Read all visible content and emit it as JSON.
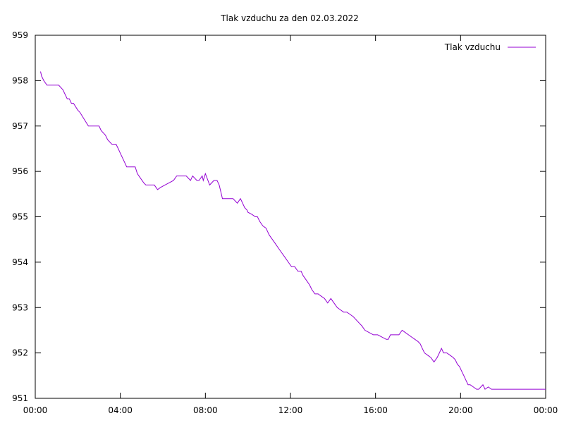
{
  "chart_data": {
    "type": "line",
    "title": "Tlak vzduchu za den 02.03.2022",
    "xlabel": "",
    "ylabel": "",
    "x_ticks": [
      "00:00",
      "04:00",
      "08:00",
      "12:00",
      "16:00",
      "20:00",
      "00:00"
    ],
    "y_ticks": [
      951,
      952,
      953,
      954,
      955,
      956,
      957,
      958,
      959
    ],
    "xlim": [
      0,
      24
    ],
    "ylim": [
      951,
      959
    ],
    "grid": false,
    "legend_position": "top-right",
    "series": [
      {
        "name": "Tlak vzduchu",
        "color": "#9400d3",
        "x": [
          0.25,
          0.3,
          0.4,
          0.55,
          0.7,
          0.9,
          1.1,
          1.3,
          1.5,
          1.6,
          1.7,
          1.8,
          2.0,
          2.1,
          2.3,
          2.5,
          2.6,
          2.7,
          2.9,
          3.0,
          3.1,
          3.3,
          3.4,
          3.6,
          3.7,
          3.8,
          3.9,
          4.0,
          4.1,
          4.2,
          4.3,
          4.45,
          4.6,
          4.7,
          4.8,
          4.95,
          5.1,
          5.2,
          5.4,
          5.5,
          5.6,
          5.75,
          5.9,
          6.1,
          6.3,
          6.5,
          6.65,
          6.8,
          6.95,
          7.1,
          7.3,
          7.4,
          7.5,
          7.6,
          7.7,
          7.85,
          7.9,
          8.0,
          8.2,
          8.4,
          8.55,
          8.65,
          8.75,
          8.8,
          8.9,
          9.0,
          9.05,
          9.1,
          9.2,
          9.3,
          9.5,
          9.65,
          9.75,
          9.85,
          9.95,
          10.0,
          10.2,
          10.35,
          10.45,
          10.55,
          10.7,
          10.85,
          11.0,
          11.15,
          11.3,
          11.45,
          11.6,
          11.75,
          11.9,
          12.05,
          12.2,
          12.35,
          12.5,
          12.6,
          12.75,
          12.9,
          13.0,
          13.15,
          13.3,
          13.45,
          13.6,
          13.75,
          13.9,
          14.05,
          14.2,
          14.35,
          14.5,
          14.65,
          14.8,
          14.95,
          15.05,
          15.15,
          15.25,
          15.35,
          15.5,
          15.7,
          15.9,
          16.1,
          16.3,
          16.5,
          16.6,
          16.7,
          16.8,
          16.95,
          17.1,
          17.25,
          17.4,
          17.55,
          17.7,
          17.85,
          18.0,
          18.1,
          18.2,
          18.3,
          18.45,
          18.6,
          18.75,
          18.9,
          19.0,
          19.1,
          19.2,
          19.35,
          19.5,
          19.65,
          19.75,
          19.85,
          19.95,
          20.05,
          20.15,
          20.25,
          20.35,
          20.45,
          20.6,
          20.75,
          20.85,
          20.95,
          21.05,
          21.15,
          21.3,
          21.45,
          21.55,
          21.65,
          21.75,
          21.85,
          22.0,
          22.15,
          22.3,
          22.45,
          22.6,
          22.75,
          22.85,
          22.95,
          23.05,
          23.15,
          23.25,
          23.35,
          23.5,
          23.7,
          23.9,
          24.0
        ],
        "y": [
          958.2,
          958.1,
          958.0,
          957.9,
          957.9,
          957.9,
          957.9,
          957.8,
          957.6,
          957.6,
          957.5,
          957.5,
          957.35,
          957.3,
          957.15,
          957.0,
          957.0,
          957.0,
          957.0,
          957.0,
          956.9,
          956.8,
          956.7,
          956.6,
          956.6,
          956.6,
          956.5,
          956.4,
          956.3,
          956.2,
          956.1,
          956.1,
          956.1,
          956.1,
          955.95,
          955.85,
          955.75,
          955.7,
          955.7,
          955.7,
          955.7,
          955.6,
          955.65,
          955.7,
          955.75,
          955.8,
          955.9,
          955.9,
          955.9,
          955.9,
          955.8,
          955.9,
          955.85,
          955.8,
          955.8,
          955.9,
          955.8,
          955.95,
          955.7,
          955.8,
          955.8,
          955.7,
          955.5,
          955.4,
          955.4,
          955.4,
          955.4,
          955.4,
          955.4,
          955.4,
          955.3,
          955.4,
          955.3,
          955.2,
          955.15,
          955.1,
          955.05,
          955.0,
          955.0,
          954.9,
          954.8,
          954.75,
          954.6,
          954.5,
          954.4,
          954.3,
          954.2,
          954.1,
          954.0,
          953.9,
          953.9,
          953.8,
          953.8,
          953.7,
          953.6,
          953.5,
          953.4,
          953.3,
          953.3,
          953.25,
          953.2,
          953.1,
          953.2,
          953.1,
          953.0,
          952.95,
          952.9,
          952.9,
          952.85,
          952.8,
          952.75,
          952.7,
          952.65,
          952.6,
          952.5,
          952.45,
          952.4,
          952.4,
          952.35,
          952.3,
          952.3,
          952.4,
          952.4,
          952.4,
          952.4,
          952.5,
          952.45,
          952.4,
          952.35,
          952.3,
          952.25,
          952.2,
          952.1,
          952.0,
          951.95,
          951.9,
          951.8,
          951.9,
          952.0,
          952.1,
          952.0,
          952.0,
          951.95,
          951.9,
          951.85,
          951.75,
          951.7,
          951.6,
          951.5,
          951.4,
          951.3,
          951.3,
          951.25,
          951.2,
          951.2,
          951.25,
          951.3,
          951.2,
          951.25,
          951.2,
          951.2,
          951.2,
          951.2,
          951.2,
          951.2,
          951.2,
          951.2,
          951.2,
          951.2,
          951.2,
          951.2,
          951.2,
          951.2,
          951.2,
          951.2,
          951.2,
          951.2,
          951.2,
          951.2,
          951.2
        ]
      }
    ]
  }
}
